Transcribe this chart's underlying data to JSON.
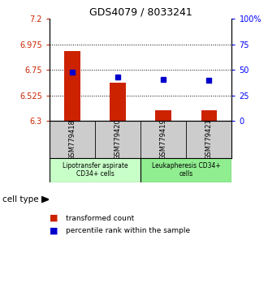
{
  "title": "GDS4079 / 8033241",
  "samples": [
    "GSM779418",
    "GSM779420",
    "GSM779419",
    "GSM779421"
  ],
  "red_values": [
    6.915,
    6.64,
    6.395,
    6.395
  ],
  "blue_values": [
    6.73,
    6.685,
    6.665,
    6.66
  ],
  "ylim_left": [
    6.3,
    7.2
  ],
  "ylim_right": [
    0,
    100
  ],
  "yticks_left": [
    6.3,
    6.525,
    6.75,
    6.975,
    7.2
  ],
  "ytick_labels_left": [
    "6.3",
    "6.525",
    "6.75",
    "6.975",
    "7.2"
  ],
  "yticks_right": [
    0,
    25,
    50,
    75,
    100
  ],
  "ytick_labels_right": [
    "0",
    "25",
    "50",
    "75",
    "100%"
  ],
  "hlines": [
    6.525,
    6.75,
    6.975
  ],
  "groups": [
    {
      "label": "Lipotransfer aspirate\nCD34+ cells",
      "samples": [
        0,
        1
      ],
      "color": "#c8ffc8"
    },
    {
      "label": "Leukapheresis CD34+\ncells",
      "samples": [
        2,
        3
      ],
      "color": "#90ee90"
    }
  ],
  "cell_type_label": "cell type",
  "legend_red": "transformed count",
  "legend_blue": "percentile rank within the sample",
  "bar_color": "#cc2200",
  "dot_color": "#0000cc",
  "bar_width": 0.35,
  "base_value": 6.3,
  "background_color": "#ffffff",
  "plot_bg": "#ffffff",
  "sample_bg": "#cccccc"
}
